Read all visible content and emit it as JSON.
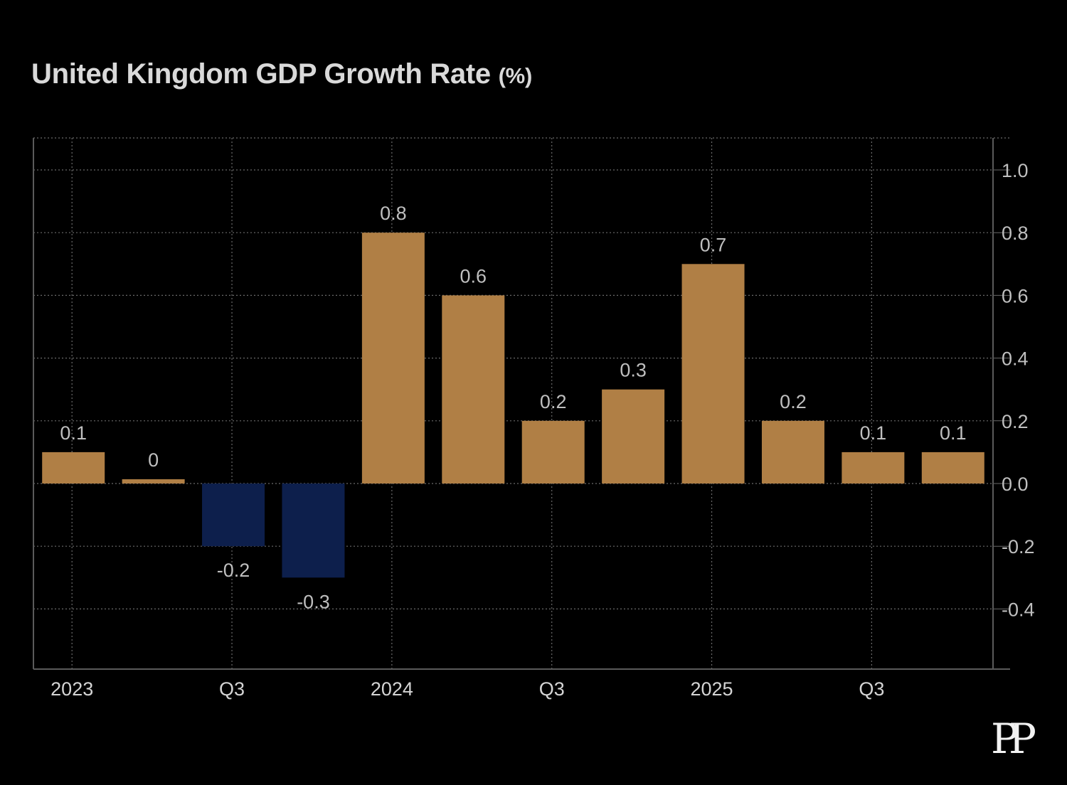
{
  "chart_data": {
    "type": "bar",
    "title": "United Kingdom GDP Growth Rate",
    "title_unit": "(%)",
    "categories": [
      "2023 Q1",
      "2023 Q2",
      "2023 Q3",
      "2023 Q4",
      "2024 Q1",
      "2024 Q2",
      "2024 Q3",
      "2024 Q4",
      "2025 Q1",
      "2025 Q2",
      "2025 Q3",
      "2025 Q4"
    ],
    "values": [
      0.1,
      0,
      -0.2,
      -0.3,
      0.8,
      0.6,
      0.2,
      0.3,
      0.7,
      0.2,
      0.1,
      0.1
    ],
    "data_labels": [
      "0.1",
      "0",
      "-0.2",
      "-0.3",
      "0.8",
      "0.6",
      "0.2",
      "0.3",
      "0.7",
      "0.2",
      "0.1",
      "0.1"
    ],
    "x_tick_labels": [
      {
        "label": "2023",
        "index": 0
      },
      {
        "label": "Q3",
        "index": 2
      },
      {
        "label": "2024",
        "index": 4
      },
      {
        "label": "Q3",
        "index": 6
      },
      {
        "label": "2025",
        "index": 8
      },
      {
        "label": "Q3",
        "index": 10
      }
    ],
    "y_ticks": [
      1.0,
      0.8,
      0.6,
      0.4,
      0.2,
      0.0,
      -0.2,
      -0.4
    ],
    "y_tick_labels": [
      "1.0",
      "0.8",
      "0.6",
      "0.4",
      "0.2",
      "0.0",
      "-0.2",
      "-0.4"
    ],
    "ylim": [
      -0.6,
      1.1
    ],
    "y_axis_side": "right",
    "grid": true,
    "colors": {
      "positive": "#b07f45",
      "negative": "#0d1f4c",
      "background": "#000000",
      "grid": "#6a6a6a",
      "text": "#bfbfbf"
    }
  },
  "branding": {
    "logo_text": "PP"
  }
}
